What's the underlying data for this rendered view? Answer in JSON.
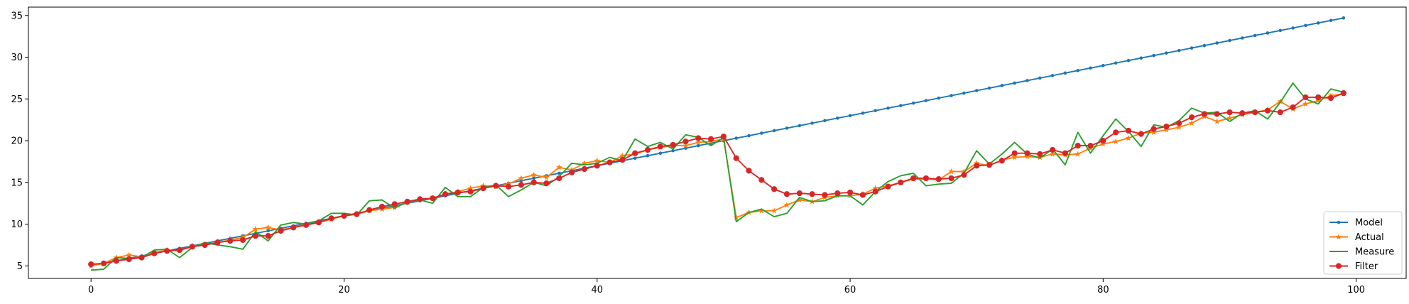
{
  "chart_data": {
    "type": "line",
    "title": "",
    "xlabel": "",
    "ylabel": "",
    "xlim": [
      -4.95,
      103.95
    ],
    "ylim": [
      3.5,
      36.0
    ],
    "xticks": [
      0,
      20,
      40,
      60,
      80,
      100
    ],
    "yticks": [
      5,
      10,
      15,
      20,
      25,
      30,
      35
    ],
    "grid": false,
    "legend_position": "lower-right",
    "x": [
      0,
      1,
      2,
      3,
      4,
      5,
      6,
      7,
      8,
      9,
      10,
      11,
      12,
      13,
      14,
      15,
      16,
      17,
      18,
      19,
      20,
      21,
      22,
      23,
      24,
      25,
      26,
      27,
      28,
      29,
      30,
      31,
      32,
      33,
      34,
      35,
      36,
      37,
      38,
      39,
      40,
      41,
      42,
      43,
      44,
      45,
      46,
      47,
      48,
      49,
      50,
      51,
      52,
      53,
      54,
      55,
      56,
      57,
      58,
      59,
      60,
      61,
      62,
      63,
      64,
      65,
      66,
      67,
      68,
      69,
      70,
      71,
      72,
      73,
      74,
      75,
      76,
      77,
      78,
      79,
      80,
      81,
      82,
      83,
      84,
      85,
      86,
      87,
      88,
      89,
      90,
      91,
      92,
      93,
      94,
      95,
      96,
      97,
      98,
      99
    ],
    "series": [
      {
        "name": "Model",
        "color": "#1f77b4",
        "marker": "point",
        "values": [
          5.0,
          5.3,
          5.6,
          5.9,
          6.2,
          6.5,
          6.8,
          7.1,
          7.4,
          7.7,
          8.0,
          8.3,
          8.6,
          8.9,
          9.2,
          9.5,
          9.8,
          10.1,
          10.4,
          10.7,
          11.0,
          11.3,
          11.6,
          11.9,
          12.2,
          12.5,
          12.8,
          13.1,
          13.4,
          13.7,
          14.0,
          14.3,
          14.6,
          14.9,
          15.2,
          15.5,
          15.8,
          16.1,
          16.4,
          16.7,
          17.0,
          17.3,
          17.6,
          17.9,
          18.2,
          18.5,
          18.8,
          19.1,
          19.4,
          19.7,
          20.0,
          20.3,
          20.6,
          20.9,
          21.2,
          21.5,
          21.8,
          22.1,
          22.4,
          22.7,
          23.0,
          23.3,
          23.6,
          23.9,
          24.2,
          24.5,
          24.8,
          25.1,
          25.4,
          25.7,
          26.0,
          26.3,
          26.6,
          26.9,
          27.2,
          27.5,
          27.8,
          28.1,
          28.4,
          28.7,
          29.0,
          29.3,
          29.6,
          29.9,
          30.2,
          30.5,
          30.8,
          31.1,
          31.4,
          31.7,
          32.0,
          32.3,
          32.6,
          32.9,
          33.2,
          33.5,
          33.8,
          34.1,
          34.4,
          34.7
        ]
      },
      {
        "name": "Actual",
        "color": "#ff7f0e",
        "marker": "star",
        "values": [
          5.0,
          5.3,
          6.0,
          6.3,
          6.1,
          6.6,
          6.9,
          6.8,
          7.4,
          7.5,
          7.8,
          8.1,
          8.4,
          9.4,
          9.6,
          9.3,
          9.6,
          10.0,
          10.2,
          10.6,
          11.0,
          11.2,
          11.6,
          11.8,
          12.0,
          12.6,
          13.0,
          13.1,
          13.6,
          13.9,
          14.3,
          14.6,
          14.5,
          14.8,
          15.5,
          15.9,
          15.6,
          16.8,
          16.5,
          17.3,
          17.6,
          17.4,
          18.2,
          18.4,
          18.9,
          19.2,
          19.4,
          19.4,
          19.8,
          19.9,
          20.2,
          10.8,
          11.4,
          11.6,
          11.6,
          12.3,
          12.9,
          12.7,
          13.2,
          13.4,
          13.4,
          13.6,
          14.3,
          14.6,
          15.0,
          15.4,
          15.4,
          15.3,
          16.3,
          16.3,
          17.3,
          17.0,
          17.7,
          18.0,
          18.1,
          18.0,
          18.4,
          18.3,
          18.4,
          19.1,
          19.6,
          19.9,
          20.3,
          20.9,
          21.0,
          21.3,
          21.6,
          22.1,
          22.9,
          22.3,
          22.7,
          23.1,
          23.4,
          23.7,
          24.7,
          23.8,
          24.4,
          24.8,
          25.4,
          25.6
        ]
      },
      {
        "name": "Measure",
        "color": "#2ca02c",
        "marker": "none",
        "values": [
          4.5,
          4.6,
          6.0,
          5.9,
          6.0,
          6.9,
          7.0,
          6.0,
          7.2,
          7.8,
          7.5,
          7.3,
          7.0,
          9.1,
          8.0,
          9.9,
          10.2,
          10.0,
          10.4,
          11.3,
          11.3,
          11.1,
          12.8,
          12.9,
          11.9,
          12.7,
          12.9,
          12.5,
          14.4,
          13.3,
          13.3,
          14.4,
          14.7,
          13.3,
          14.1,
          15.0,
          14.6,
          15.7,
          17.3,
          17.1,
          17.3,
          18.0,
          17.6,
          20.2,
          19.3,
          19.8,
          19.0,
          20.7,
          20.4,
          19.4,
          20.4,
          10.3,
          11.4,
          11.8,
          10.9,
          11.3,
          13.2,
          12.7,
          12.8,
          13.4,
          13.4,
          12.3,
          13.9,
          15.1,
          15.8,
          16.1,
          14.6,
          14.8,
          14.9,
          16.1,
          18.8,
          17.2,
          18.4,
          19.8,
          18.4,
          17.9,
          19.0,
          17.1,
          21.0,
          18.5,
          20.6,
          22.6,
          21.1,
          19.3,
          21.9,
          21.6,
          22.4,
          23.9,
          23.3,
          23.4,
          22.3,
          23.3,
          23.6,
          22.6,
          24.6,
          26.9,
          25.0,
          24.4,
          26.2,
          25.8
        ]
      },
      {
        "name": "Filter",
        "color": "#d62728",
        "marker": "circle",
        "values": [
          5.2,
          5.3,
          5.6,
          5.8,
          6.0,
          6.5,
          6.8,
          6.9,
          7.3,
          7.5,
          7.8,
          8.0,
          8.1,
          8.6,
          8.6,
          9.2,
          9.6,
          9.9,
          10.2,
          10.7,
          11.0,
          11.2,
          11.7,
          12.1,
          12.4,
          12.7,
          13.0,
          13.1,
          13.6,
          13.8,
          13.9,
          14.3,
          14.6,
          14.5,
          14.7,
          15.0,
          14.9,
          15.5,
          16.2,
          16.6,
          17.0,
          17.4,
          17.7,
          18.5,
          18.9,
          19.3,
          19.5,
          19.9,
          20.3,
          20.2,
          20.5,
          17.9,
          16.4,
          15.3,
          14.2,
          13.6,
          13.7,
          13.6,
          13.5,
          13.7,
          13.8,
          13.5,
          13.9,
          14.5,
          15.0,
          15.5,
          15.5,
          15.4,
          15.5,
          15.9,
          17.0,
          17.1,
          17.6,
          18.5,
          18.5,
          18.4,
          18.9,
          18.5,
          19.4,
          19.4,
          20.0,
          21.0,
          21.2,
          20.8,
          21.4,
          21.7,
          22.1,
          22.8,
          23.2,
          23.2,
          23.4,
          23.3,
          23.4,
          23.6,
          23.4,
          24.0,
          25.2,
          25.2,
          25.1,
          25.7
        ]
      }
    ]
  }
}
